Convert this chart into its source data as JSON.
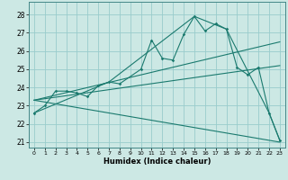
{
  "xlabel": "Humidex (Indice chaleur)",
  "bg_color": "#cce8e4",
  "grid_color": "#99cccc",
  "line_color": "#1a7a6e",
  "xlim": [
    -0.5,
    23.5
  ],
  "ylim": [
    20.7,
    28.7
  ],
  "yticks": [
    21,
    22,
    23,
    24,
    25,
    26,
    27,
    28
  ],
  "xticks": [
    0,
    1,
    2,
    3,
    4,
    5,
    6,
    7,
    8,
    9,
    10,
    11,
    12,
    13,
    14,
    15,
    16,
    17,
    18,
    19,
    20,
    21,
    22,
    23
  ],
  "main_x": [
    0,
    1,
    2,
    3,
    4,
    5,
    6,
    7,
    8,
    10,
    11,
    12,
    13,
    14,
    15,
    16,
    17,
    18,
    19,
    20,
    21,
    22,
    23
  ],
  "main_y": [
    22.6,
    23.0,
    23.8,
    23.8,
    23.7,
    23.5,
    24.1,
    24.3,
    24.2,
    25.0,
    26.6,
    25.6,
    25.5,
    26.9,
    27.9,
    27.1,
    27.5,
    27.2,
    25.1,
    24.7,
    25.1,
    22.6,
    21.1
  ],
  "envelope_x": [
    0,
    7,
    15,
    18,
    22,
    23
  ],
  "envelope_y": [
    22.6,
    24.3,
    27.9,
    27.2,
    22.6,
    21.1
  ],
  "trend1_x": [
    0,
    23
  ],
  "trend1_y": [
    23.3,
    26.5
  ],
  "trend2_x": [
    0,
    23
  ],
  "trend2_y": [
    23.3,
    21.0
  ],
  "trend3_x": [
    0,
    23
  ],
  "trend3_y": [
    23.3,
    25.2
  ]
}
